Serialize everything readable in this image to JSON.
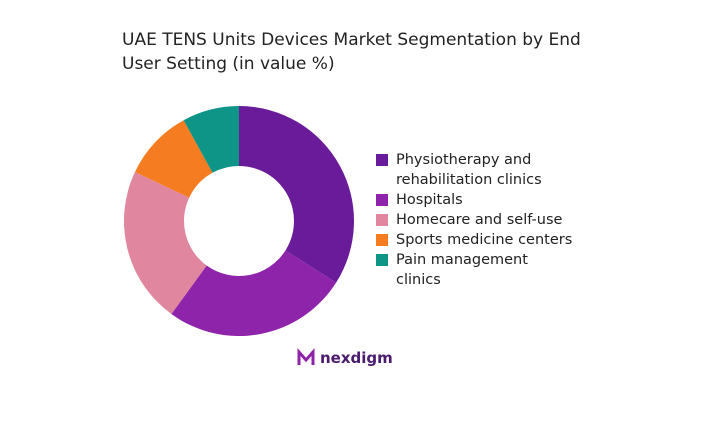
{
  "chart_data": {
    "type": "donut",
    "title": "UAE TENS Units Devices Market Segmentation by End User Setting (in value %)",
    "categories": [
      "Physiotherapy and rehabilitation clinics",
      "Hospitals",
      "Homecare and self-use",
      "Sports medicine centers",
      "Pain management clinics"
    ],
    "values": [
      34,
      26,
      22,
      10,
      8
    ],
    "colors": [
      "#6a1b9a",
      "#8e24aa",
      "#e0879f",
      "#f57c20",
      "#0f9488"
    ]
  },
  "logo": "nexdigm"
}
